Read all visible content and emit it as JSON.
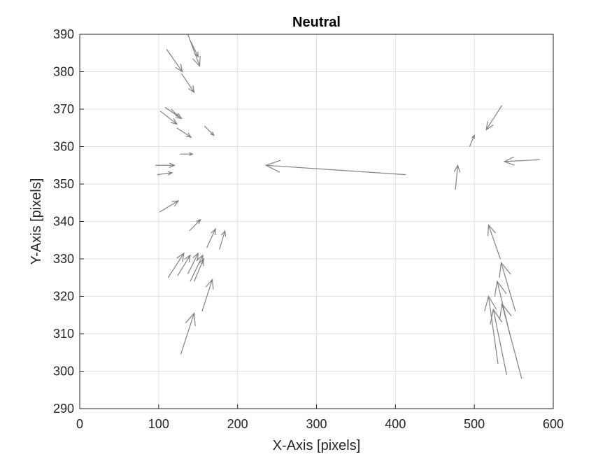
{
  "chart_data": {
    "type": "quiver",
    "title": "Neutral",
    "xlabel": "X-Axis [pixels]",
    "ylabel": "Y-Axis [pixels]",
    "xlim": [
      0,
      600
    ],
    "ylim": [
      290,
      390
    ],
    "xticks": [
      "0",
      "100",
      "200",
      "300",
      "400",
      "500",
      "600"
    ],
    "yticks": [
      "290",
      "300",
      "310",
      "320",
      "330",
      "340",
      "350",
      "360",
      "370",
      "380",
      "390"
    ],
    "grid": true,
    "arrow_color": "#808080",
    "vectors": [
      {
        "x": 137,
        "y": 390,
        "u": 15,
        "v": -8.5
      },
      {
        "x": 141,
        "y": 388,
        "u": 9,
        "v": -4
      },
      {
        "x": 110,
        "y": 386,
        "u": 20,
        "v": -6
      },
      {
        "x": 129,
        "y": 379.5,
        "u": 16,
        "v": -5
      },
      {
        "x": 108,
        "y": 370.5,
        "u": 21,
        "v": -3
      },
      {
        "x": 102,
        "y": 369.5,
        "u": 21,
        "v": -3.5
      },
      {
        "x": 116,
        "y": 370,
        "u": 9,
        "v": -2
      },
      {
        "x": 123,
        "y": 365,
        "u": 18,
        "v": -2.5
      },
      {
        "x": 158,
        "y": 365.5,
        "u": 12,
        "v": -2.5
      },
      {
        "x": 127,
        "y": 358,
        "u": 16,
        "v": 0
      },
      {
        "x": 96,
        "y": 355,
        "u": 24,
        "v": 0
      },
      {
        "x": 98,
        "y": 352.5,
        "u": 19,
        "v": 0.5
      },
      {
        "x": 101,
        "y": 342.5,
        "u": 24,
        "v": 3
      },
      {
        "x": 139,
        "y": 337.5,
        "u": 14,
        "v": 3
      },
      {
        "x": 161,
        "y": 333,
        "u": 11,
        "v": 5
      },
      {
        "x": 177,
        "y": 332.5,
        "u": 7,
        "v": 5
      },
      {
        "x": 112,
        "y": 325,
        "u": 20,
        "v": 6.5
      },
      {
        "x": 124,
        "y": 325.5,
        "u": 16,
        "v": 5.5
      },
      {
        "x": 137,
        "y": 326,
        "u": 13,
        "v": 5.5
      },
      {
        "x": 140,
        "y": 324,
        "u": 16,
        "v": 7
      },
      {
        "x": 145,
        "y": 324,
        "u": 12,
        "v": 6
      },
      {
        "x": 155,
        "y": 316,
        "u": 13,
        "v": 8.5
      },
      {
        "x": 128,
        "y": 304.5,
        "u": 17,
        "v": 11
      },
      {
        "x": 413,
        "y": 352.5,
        "u": -177,
        "v": 2.5
      },
      {
        "x": 476,
        "y": 348.5,
        "u": 3,
        "v": 6.5
      },
      {
        "x": 494,
        "y": 360,
        "u": 6,
        "v": 3
      },
      {
        "x": 535,
        "y": 371,
        "u": -20,
        "v": -6.5
      },
      {
        "x": 583,
        "y": 356.5,
        "u": -45,
        "v": -0.5
      },
      {
        "x": 533,
        "y": 330,
        "u": -15,
        "v": 9
      },
      {
        "x": 552,
        "y": 316,
        "u": -18,
        "v": 13
      },
      {
        "x": 546,
        "y": 309,
        "u": -17,
        "v": 15
      },
      {
        "x": 541,
        "y": 299,
        "u": -17,
        "v": 17.5
      },
      {
        "x": 560,
        "y": 298,
        "u": -25,
        "v": 20
      },
      {
        "x": 530,
        "y": 302,
        "u": -12,
        "v": 18
      }
    ]
  }
}
